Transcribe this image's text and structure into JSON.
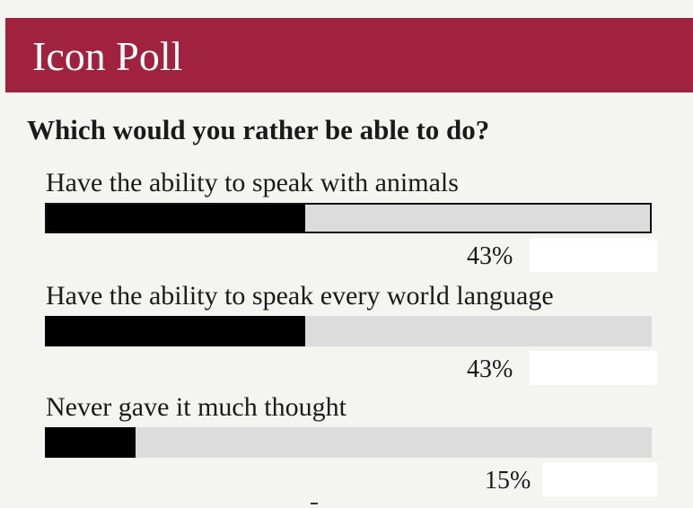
{
  "header": {
    "title": "Icon Poll",
    "color": "#a0223f"
  },
  "question": "Which would you rather be able to do?",
  "options": [
    {
      "label": "Have the ability to speak with animals",
      "percent": "43%",
      "fraction": 0.43,
      "selected": true
    },
    {
      "label": "Have the ability to speak every world language",
      "percent": "43%",
      "fraction": 0.43,
      "selected": false
    },
    {
      "label": "Never gave it much thought",
      "percent": "15%",
      "fraction": 0.15,
      "selected": false
    }
  ],
  "colors": {
    "background": "#f4f4f0",
    "bar_track": "#dcdcdc",
    "bar_fill": "#000000"
  }
}
